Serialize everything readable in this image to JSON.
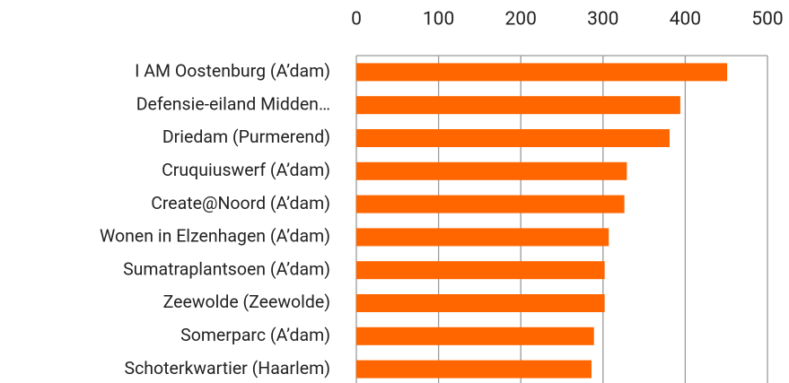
{
  "chart_data": {
    "type": "bar",
    "orientation": "horizontal",
    "categories": [
      "I AM Oostenburg (A’dam)",
      "Defensie-eiland Midden…",
      "Driedam (Purmerend)",
      "Cruquiuswerf (A’dam)",
      "Create@Noord (A’dam)",
      "Wonen in Elzenhagen (A’dam)",
      "Sumatraplantsoen (A’dam)",
      "Zeewolde (Zeewolde)",
      "Somerparc (A’dam)",
      "Schoterkwartier (Haarlem)"
    ],
    "values": [
      451,
      394,
      381,
      329,
      326,
      307,
      302,
      302,
      289,
      286
    ],
    "color": "#ff6600",
    "xlim": [
      0,
      500
    ],
    "xticks": [
      0,
      100,
      200,
      300,
      400,
      500
    ],
    "grid": true
  }
}
